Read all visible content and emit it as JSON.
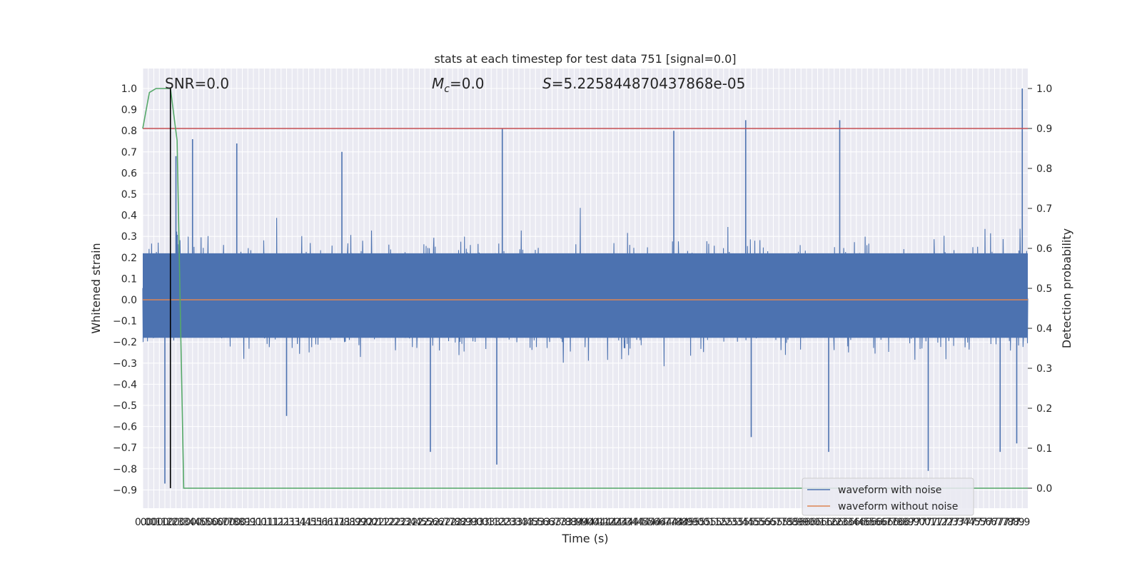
{
  "chart_data": {
    "type": "line",
    "title": "stats at each timestep for test data 751 [signal=0.0]",
    "xlabel": "Time (s)",
    "ylabel": "Whitened strain",
    "y2label": "Detection probability",
    "xlim": [
      0.0,
      8.0
    ],
    "ylim": [
      -1.0,
      1.05
    ],
    "y2lim": [
      -0.05,
      1.05
    ],
    "x_ticks": [
      0.0,
      0.05,
      0.1,
      0.15,
      0.2,
      0.25,
      0.3,
      0.35,
      0.4,
      0.45,
      0.5,
      0.55,
      0.6,
      0.65,
      0.7,
      0.75,
      0.8,
      0.85,
      0.9,
      0.95,
      1.0,
      1.05,
      1.1,
      1.15,
      1.2,
      1.25,
      1.3,
      1.35,
      1.4,
      1.45,
      1.5,
      1.55,
      1.6,
      1.65,
      1.7,
      1.75,
      1.8,
      1.85,
      1.9,
      1.95,
      2.0,
      2.05,
      2.1,
      2.15,
      2.2,
      2.25,
      2.3,
      2.35,
      2.4,
      2.45,
      2.5,
      2.55,
      2.6,
      2.65,
      2.7,
      2.75,
      2.8,
      2.85,
      2.9,
      2.95,
      3.0,
      3.05,
      3.1,
      3.15,
      3.2,
      3.25,
      3.3,
      3.35,
      3.4,
      3.45,
      3.5,
      3.55,
      3.6,
      3.65,
      3.7,
      3.75,
      3.8,
      3.85,
      3.9,
      3.95,
      4.0,
      4.05,
      4.1,
      4.15,
      4.2,
      4.25,
      4.3,
      4.35,
      4.4,
      4.45,
      4.5,
      4.55,
      4.6,
      4.65,
      4.7,
      4.75,
      4.8,
      4.85,
      4.9,
      4.95,
      5.0,
      5.05,
      5.1,
      5.15,
      5.2,
      5.25,
      5.3,
      5.35,
      5.4,
      5.45,
      5.5,
      5.55,
      5.6,
      5.65,
      5.7,
      5.75,
      5.8,
      5.85,
      5.9,
      5.95,
      6.0,
      6.05,
      6.1,
      6.15,
      6.2,
      6.25,
      6.3,
      6.35,
      6.4,
      6.45,
      6.5,
      6.55,
      6.6,
      6.65,
      6.7,
      6.75,
      6.8,
      6.85,
      6.9,
      6.95,
      7.0,
      7.05,
      7.1,
      7.15,
      7.2,
      7.25,
      7.3,
      7.35,
      7.4,
      7.45,
      7.5,
      7.55,
      7.6,
      7.65,
      7.7,
      7.75,
      7.8,
      7.85,
      7.9,
      7.95
    ],
    "x_tick_labels": [
      "0.0",
      "0.0",
      "0.1",
      "0.1",
      "0.2",
      "0.2",
      "0.3",
      "0.3",
      "0.4",
      "0.4",
      "0.5",
      "0.5",
      "0.6",
      "0.6",
      "0.7",
      "0.7",
      "0.8",
      "0.8",
      "0.9",
      "0.9",
      "1.0",
      "1.0",
      "1.1",
      "1.1",
      "1.2",
      "1.2",
      "1.3",
      "1.3",
      "1.4",
      "1.4",
      "1.5",
      "1.5",
      "1.6",
      "1.6",
      "1.7",
      "1.7",
      "1.8",
      "1.8",
      "1.9",
      "1.9",
      "2.0",
      "2.0",
      "2.1",
      "2.1",
      "2.2",
      "2.2",
      "2.3",
      "2.3",
      "2.4",
      "2.4",
      "2.5",
      "2.5",
      "2.6",
      "2.6",
      "2.7",
      "2.7",
      "2.8",
      "2.8",
      "2.9",
      "2.9",
      "3.0",
      "3.0",
      "3.1",
      "3.1",
      "3.2",
      "3.2",
      "3.3",
      "3.3",
      "3.4",
      "3.4",
      "3.5",
      "3.5",
      "3.6",
      "3.6",
      "3.7",
      "3.7",
      "3.8",
      "3.8",
      "3.9",
      "3.9",
      "4.0",
      "4.0",
      "4.1",
      "4.1",
      "4.2",
      "4.2",
      "4.3",
      "4.3",
      "4.4",
      "4.4",
      "4.5",
      "4.5",
      "4.6",
      "4.6",
      "4.7",
      "4.7",
      "4.8",
      "4.8",
      "4.9",
      "4.9",
      "5.0",
      "5.0",
      "5.1",
      "5.1",
      "5.2",
      "5.2",
      "5.3",
      "5.3",
      "5.4",
      "5.4",
      "5.5",
      "5.5",
      "5.6",
      "5.6",
      "5.7",
      "5.7",
      "5.8",
      "5.8",
      "5.9",
      "5.9",
      "6.0",
      "6.0",
      "6.1",
      "6.1",
      "6.2",
      "6.2",
      "6.3",
      "6.3",
      "6.4",
      "6.4",
      "6.5",
      "6.5",
      "6.6",
      "6.6",
      "6.7",
      "6.7",
      "6.8",
      "6.8",
      "6.9",
      "6.9",
      "7.0",
      "7.0",
      "7.1",
      "7.1",
      "7.2",
      "7.2",
      "7.3",
      "7.3",
      "7.4",
      "7.4",
      "7.5",
      "7.5",
      "7.6",
      "7.6",
      "7.7",
      "7.7",
      "7.8",
      "7.8",
      "7.9",
      "7.9"
    ],
    "y_ticks": [
      1.0,
      0.9,
      0.8,
      0.7,
      0.6,
      0.5,
      0.4,
      0.3,
      0.2,
      0.1,
      0.0,
      -0.1,
      -0.2,
      -0.3,
      -0.4,
      -0.5,
      -0.6,
      -0.7,
      -0.8,
      -0.9
    ],
    "y_tick_labels": [
      "1.0",
      "0.9",
      "0.8",
      "0.7",
      "0.6",
      "0.5",
      "0.4",
      "0.3",
      "0.2",
      "0.1",
      "0.0",
      "−0.1",
      "−0.2",
      "−0.3",
      "−0.4",
      "−0.5",
      "−0.6",
      "−0.7",
      "−0.8",
      "−0.9"
    ],
    "y2_ticks": [
      1.0,
      0.9,
      0.8,
      0.7,
      0.6,
      0.5,
      0.4,
      0.3,
      0.2,
      0.1,
      0.0
    ],
    "y2_tick_labels": [
      "1.0",
      "0.9",
      "0.8",
      "0.7",
      "0.6",
      "0.5",
      "0.4",
      "0.3",
      "0.2",
      "0.1",
      "0.0"
    ],
    "series": [
      {
        "name": "waveform with noise",
        "color": "#4c72b0",
        "note_noise_envelope": "dense noise; envelope points (x, y)",
        "spikes": [
          [
            0.2,
            -0.87
          ],
          [
            0.25,
            -0.87
          ],
          [
            0.3,
            0.68
          ],
          [
            0.45,
            0.76
          ],
          [
            0.85,
            0.74
          ],
          [
            1.3,
            -0.55
          ],
          [
            1.8,
            0.7
          ],
          [
            2.6,
            -0.72
          ],
          [
            3.25,
            0.81
          ],
          [
            3.2,
            -0.78
          ],
          [
            4.8,
            0.8
          ],
          [
            5.45,
            0.85
          ],
          [
            5.5,
            -0.65
          ],
          [
            6.3,
            0.85
          ],
          [
            6.2,
            -0.72
          ],
          [
            7.1,
            -0.81
          ],
          [
            7.75,
            -0.72
          ],
          [
            7.95,
            1.0
          ],
          [
            7.9,
            -0.68
          ]
        ]
      },
      {
        "name": "waveform without noise",
        "color": "#dd8452",
        "x": [
          0.0,
          8.0
        ],
        "y": [
          0.0,
          0.0
        ]
      },
      {
        "name": "detection probability",
        "axis": "right",
        "color": "#55a868",
        "x": [
          0.0,
          0.06,
          0.12,
          0.18,
          0.25,
          0.31,
          0.37,
          0.43,
          8.0
        ],
        "y": [
          0.9,
          0.99,
          1.0,
          1.0,
          1.0,
          0.87,
          0.0,
          0.0,
          0.0
        ]
      }
    ],
    "threshold": {
      "axis": "right",
      "value": 0.9,
      "color": "#c44e52"
    },
    "marker": {
      "x": 0.25,
      "color": "#000000"
    }
  },
  "annotations": {
    "snr": "SNR=0.0",
    "mc_symbol": "M",
    "mc_sub": "c",
    "mc_value": "=0.0",
    "s_symbol": "S",
    "s_value": "=5.225844870437868e-05"
  },
  "legend": {
    "items": [
      {
        "label": "waveform with noise",
        "color": "#4c72b0"
      },
      {
        "label": "waveform without noise",
        "color": "#dd8452"
      }
    ]
  }
}
